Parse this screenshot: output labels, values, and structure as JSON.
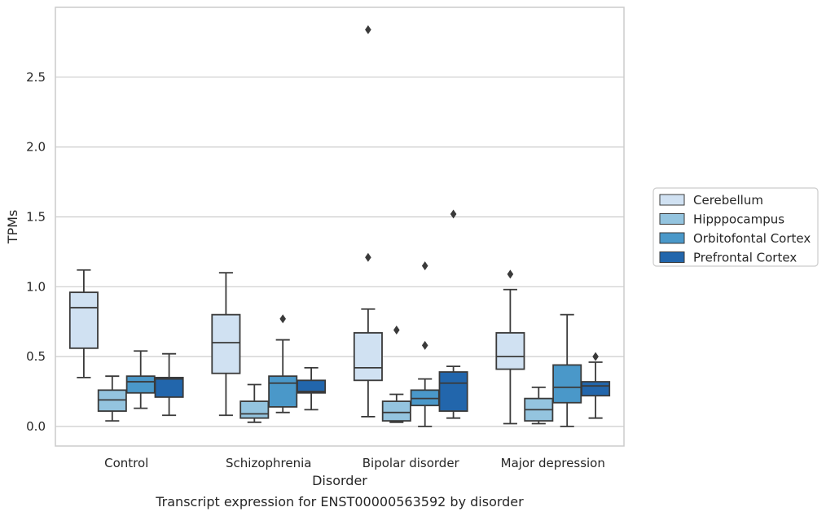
{
  "chart_data": {
    "type": "box",
    "xlabel": "Disorder",
    "ylabel": "TPMs",
    "caption": "Transcript expression for ENST00000563592 by disorder",
    "categories": [
      "Control",
      "Schizophrenia",
      "Bipolar disorder",
      "Major depression"
    ],
    "ylim": [
      -0.14,
      3.0
    ],
    "yticks": [
      0.0,
      0.5,
      1.0,
      1.5,
      2.0,
      2.5
    ],
    "ytick_labels": [
      "0.0",
      "0.5",
      "1.0",
      "1.5",
      "2.0",
      "2.5"
    ],
    "grid": "horizontal",
    "legend_placement": "right",
    "series": [
      {
        "name": "Cerebellum",
        "color": "#d0e1f2",
        "boxes": [
          {
            "whislo": 0.35,
            "q1": 0.56,
            "med": 0.85,
            "q3": 0.96,
            "whishi": 1.12,
            "fliers": []
          },
          {
            "whislo": 0.08,
            "q1": 0.38,
            "med": 0.6,
            "q3": 0.8,
            "whishi": 1.1,
            "fliers": []
          },
          {
            "whislo": 0.07,
            "q1": 0.33,
            "med": 0.42,
            "q3": 0.67,
            "whishi": 0.84,
            "fliers": [
              1.21,
              2.84
            ]
          },
          {
            "whislo": 0.02,
            "q1": 0.41,
            "med": 0.5,
            "q3": 0.67,
            "whishi": 0.98,
            "fliers": [
              1.09
            ]
          }
        ]
      },
      {
        "name": "Hipppocampus",
        "color": "#94c4df",
        "boxes": [
          {
            "whislo": 0.04,
            "q1": 0.11,
            "med": 0.19,
            "q3": 0.26,
            "whishi": 0.36,
            "fliers": []
          },
          {
            "whislo": 0.03,
            "q1": 0.06,
            "med": 0.09,
            "q3": 0.18,
            "whishi": 0.3,
            "fliers": []
          },
          {
            "whislo": 0.03,
            "q1": 0.04,
            "med": 0.1,
            "q3": 0.18,
            "whishi": 0.23,
            "fliers": [
              0.69
            ]
          },
          {
            "whislo": 0.02,
            "q1": 0.04,
            "med": 0.12,
            "q3": 0.2,
            "whishi": 0.28,
            "fliers": []
          }
        ]
      },
      {
        "name": "Orbitofontal Cortex",
        "color": "#4a98c9",
        "boxes": [
          {
            "whislo": 0.13,
            "q1": 0.24,
            "med": 0.32,
            "q3": 0.36,
            "whishi": 0.54,
            "fliers": []
          },
          {
            "whislo": 0.1,
            "q1": 0.14,
            "med": 0.31,
            "q3": 0.36,
            "whishi": 0.62,
            "fliers": [
              0.77
            ]
          },
          {
            "whislo": 0.0,
            "q1": 0.15,
            "med": 0.2,
            "q3": 0.26,
            "whishi": 0.34,
            "fliers": [
              0.58,
              1.15
            ]
          },
          {
            "whislo": 0.0,
            "q1": 0.17,
            "med": 0.28,
            "q3": 0.44,
            "whishi": 0.8,
            "fliers": []
          }
        ]
      },
      {
        "name": "Prefrontal Cortex",
        "color": "#2266ac",
        "boxes": [
          {
            "whislo": 0.08,
            "q1": 0.21,
            "med": 0.34,
            "q3": 0.35,
            "whishi": 0.52,
            "fliers": []
          },
          {
            "whislo": 0.12,
            "q1": 0.24,
            "med": 0.25,
            "q3": 0.33,
            "whishi": 0.42,
            "fliers": []
          },
          {
            "whislo": 0.06,
            "q1": 0.11,
            "med": 0.31,
            "q3": 0.39,
            "whishi": 0.43,
            "fliers": [
              1.52
            ]
          },
          {
            "whislo": 0.06,
            "q1": 0.22,
            "med": 0.29,
            "q3": 0.32,
            "whishi": 0.46,
            "fliers": [
              0.5
            ]
          }
        ]
      }
    ]
  }
}
